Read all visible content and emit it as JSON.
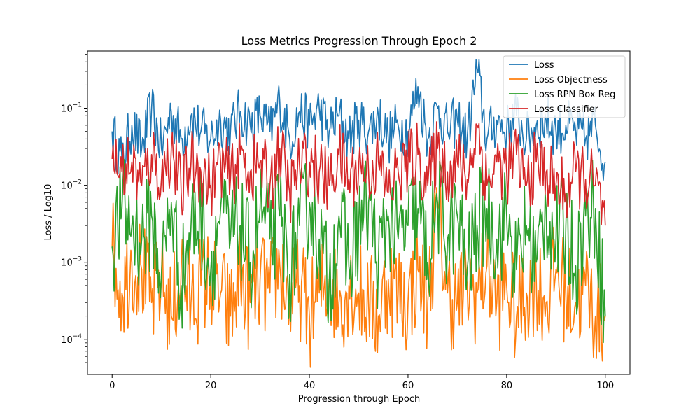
{
  "chart_data": {
    "type": "line",
    "title": "Loss Metrics Progression Through Epoch 2",
    "xlabel": "Progression through Epoch",
    "ylabel": "Loss / Log10",
    "x_scale": "linear",
    "y_scale": "log",
    "xlim": [
      -5,
      105
    ],
    "ylim": [
      3.5e-05,
      0.55
    ],
    "x_ticks": [
      0,
      20,
      40,
      60,
      80,
      100
    ],
    "y_ticks": [
      {
        "value": 0.0001,
        "mantissa": "10",
        "exponent": "−4"
      },
      {
        "value": 0.001,
        "mantissa": "10",
        "exponent": "−3"
      },
      {
        "value": 0.01,
        "mantissa": "10",
        "exponent": "−2"
      },
      {
        "value": 0.1,
        "mantissa": "10",
        "exponent": "−1"
      }
    ],
    "grid": false,
    "legend_position": "top-right",
    "x": [
      0,
      2,
      4,
      6,
      8,
      10,
      12,
      14,
      16,
      18,
      20,
      22,
      24,
      26,
      28,
      30,
      32,
      34,
      36,
      38,
      40,
      42,
      44,
      46,
      48,
      50,
      52,
      54,
      56,
      58,
      60,
      62,
      64,
      66,
      68,
      70,
      72,
      74,
      76,
      78,
      80,
      82,
      84,
      86,
      88,
      90,
      92,
      94,
      96,
      98,
      100
    ],
    "series": [
      {
        "name": "Loss",
        "color": "#1f77b4",
        "values": [
          0.05,
          0.02,
          0.06,
          0.03,
          0.1,
          0.03,
          0.09,
          0.04,
          0.08,
          0.05,
          0.04,
          0.07,
          0.05,
          0.09,
          0.06,
          0.08,
          0.05,
          0.12,
          0.04,
          0.09,
          0.06,
          0.1,
          0.05,
          0.08,
          0.04,
          0.07,
          0.05,
          0.08,
          0.04,
          0.06,
          0.05,
          0.19,
          0.04,
          0.1,
          0.05,
          0.07,
          0.04,
          0.32,
          0.04,
          0.07,
          0.05,
          0.08,
          0.04,
          0.06,
          0.07,
          0.05,
          0.06,
          0.05,
          0.04,
          0.06,
          0.02
        ]
      },
      {
        "name": "Loss Objectness",
        "color": "#ff7f0e",
        "values": [
          0.0015,
          0.0004,
          0.001,
          0.0008,
          0.0003,
          0.0006,
          0.0002,
          0.0008,
          0.0003,
          0.0005,
          0.0006,
          0.0004,
          0.0002,
          0.0007,
          0.0003,
          0.0006,
          0.0004,
          0.0009,
          0.0003,
          0.0005,
          0.0002,
          0.0004,
          0.0006,
          0.0003,
          0.0005,
          0.0004,
          0.0003,
          0.0002,
          0.0006,
          0.0004,
          0.0003,
          0.0008,
          0.0003,
          0.005,
          0.0004,
          0.0003,
          0.0005,
          0.0004,
          0.0009,
          0.0003,
          0.0005,
          0.0002,
          0.0004,
          0.0006,
          0.0003,
          0.0008,
          0.0004,
          0.0003,
          0.0005,
          0.0002,
          0.0002
        ]
      },
      {
        "name": "Loss RPN Box Reg",
        "color": "#2ca02c",
        "values": [
          0.0016,
          0.005,
          0.003,
          0.002,
          0.004,
          0.0007,
          0.006,
          0.0005,
          0.003,
          0.004,
          0.0008,
          0.005,
          0.002,
          0.003,
          0.001,
          0.005,
          0.002,
          0.004,
          0.0007,
          0.003,
          0.006,
          0.002,
          0.0005,
          0.004,
          0.0009,
          0.003,
          0.006,
          0.001,
          0.004,
          0.002,
          0.003,
          0.005,
          0.001,
          0.006,
          0.002,
          0.004,
          0.0008,
          0.003,
          0.005,
          0.002,
          0.004,
          0.0008,
          0.003,
          0.001,
          0.005,
          0.002,
          0.003,
          0.0009,
          0.004,
          0.005,
          0.0002
        ]
      },
      {
        "name": "Loss Classifier",
        "color": "#d62728",
        "values": [
          0.022,
          0.015,
          0.02,
          0.01,
          0.025,
          0.012,
          0.03,
          0.008,
          0.02,
          0.015,
          0.01,
          0.02,
          0.012,
          0.025,
          0.015,
          0.02,
          0.01,
          0.03,
          0.008,
          0.018,
          0.02,
          0.015,
          0.01,
          0.025,
          0.012,
          0.018,
          0.015,
          0.02,
          0.008,
          0.015,
          0.02,
          0.025,
          0.01,
          0.03,
          0.015,
          0.02,
          0.012,
          0.06,
          0.01,
          0.02,
          0.015,
          0.025,
          0.01,
          0.02,
          0.015,
          0.01,
          0.008,
          0.015,
          0.012,
          0.01,
          0.003
        ]
      }
    ]
  }
}
